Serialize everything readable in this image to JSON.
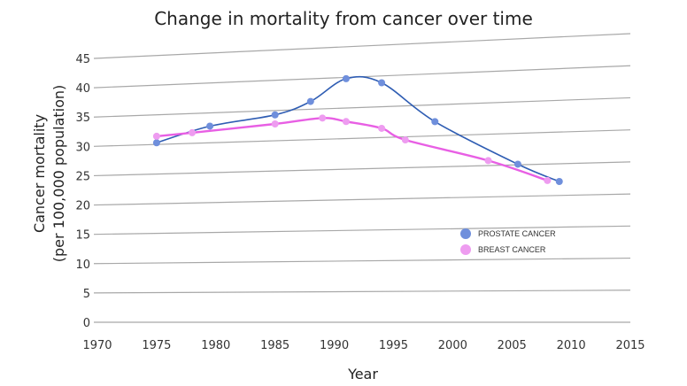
{
  "chart_data": {
    "type": "line",
    "title": "Change in mortality from cancer over time",
    "xlabel": "Year",
    "ylabel_lines": [
      "Cancer mortality",
      "(per 100,000 population)"
    ],
    "xlim": [
      1970,
      2015
    ],
    "ylim": [
      0,
      45
    ],
    "xticks": [
      1970,
      1975,
      1980,
      1985,
      1990,
      1995,
      2000,
      2005,
      2010,
      2015
    ],
    "yticks": [
      0,
      5,
      10,
      15,
      20,
      25,
      30,
      35,
      40,
      45
    ],
    "grid": true,
    "legend_position": "right",
    "series": [
      {
        "name": "PROSTATE CANCER",
        "color": "#2f5db3",
        "marker_color": "#6f8fdc",
        "points": [
          {
            "x": 1975,
            "y": 30.3
          },
          {
            "x": 1979.5,
            "y": 32.8
          },
          {
            "x": 1985,
            "y": 34.3
          },
          {
            "x": 1988,
            "y": 36.3
          },
          {
            "x": 1991,
            "y": 39.8
          },
          {
            "x": 1994,
            "y": 38.9
          },
          {
            "x": 1998.5,
            "y": 32.3
          },
          {
            "x": 2005.5,
            "y": 25.1
          },
          {
            "x": 2009,
            "y": 22.2
          }
        ]
      },
      {
        "name": "BREAST CANCER",
        "color": "#e85fe4",
        "marker_color": "#ee9cf0",
        "points": [
          {
            "x": 1975,
            "y": 31.4
          },
          {
            "x": 1978,
            "y": 31.8
          },
          {
            "x": 1985,
            "y": 32.8
          },
          {
            "x": 1989,
            "y": 33.5
          },
          {
            "x": 1991,
            "y": 32.8
          },
          {
            "x": 1994,
            "y": 31.5
          },
          {
            "x": 1996,
            "y": 29.5
          },
          {
            "x": 2003,
            "y": 25.8
          },
          {
            "x": 2008,
            "y": 22.4
          }
        ]
      }
    ]
  }
}
